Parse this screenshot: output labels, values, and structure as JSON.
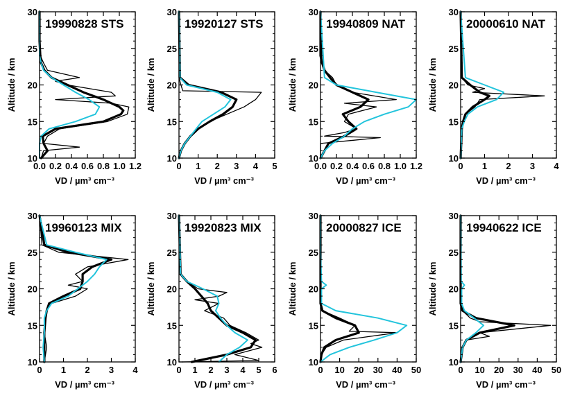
{
  "figure": {
    "panels": [
      {
        "title": "19990828 STS",
        "xticks": [
          "0.0",
          "0.2",
          "0.4",
          "0.6",
          "0.8",
          "1.0",
          "1.2"
        ],
        "xmax": 1.2
      },
      {
        "title": "19920127 STS",
        "xticks": [
          "0",
          "1",
          "2",
          "3",
          "4",
          "5"
        ],
        "xmax": 5
      },
      {
        "title": "19940809 NAT",
        "xticks": [
          "0.0",
          "0.2",
          "0.4",
          "0.6",
          "0.8",
          "1.0",
          "1.2"
        ],
        "xmax": 1.2
      },
      {
        "title": "20000610 NAT",
        "xticks": [
          "0",
          "1",
          "2",
          "3",
          "4"
        ],
        "xmax": 4
      },
      {
        "title": "19960123 MIX",
        "xticks": [
          "0",
          "1",
          "2",
          "3",
          "4"
        ],
        "xmax": 4
      },
      {
        "title": "19920823 MIX",
        "xticks": [
          "0",
          "1",
          "2",
          "3",
          "4",
          "5",
          "6"
        ],
        "xmax": 6
      },
      {
        "title": "20000827 ICE",
        "xticks": [
          "0",
          "10",
          "20",
          "30",
          "40",
          "50"
        ],
        "xmax": 50
      },
      {
        "title": "19940622 ICE",
        "xticks": [
          "0",
          "10",
          "20",
          "30",
          "40",
          "50"
        ],
        "xmax": 50
      }
    ],
    "ylabel": "Altitude / km",
    "xlabel": "VD / µm³ cm⁻³",
    "yticks": [
      "10",
      "15",
      "20",
      "25",
      "30"
    ],
    "colors": {
      "obs": "#000000",
      "model": "#22c4dc"
    }
  },
  "chart_data": [
    {
      "type": "line",
      "title": "19990828 STS",
      "xlabel": "VD / µm³ cm⁻³",
      "ylabel": "Altitude / km",
      "xlim": [
        0,
        1.2
      ],
      "ylim": [
        10,
        30
      ],
      "series": [
        {
          "style": "thick-black",
          "y": [
            10,
            11,
            12,
            13,
            14,
            15,
            16,
            16.5,
            17,
            18,
            19,
            20,
            21,
            22,
            23,
            24,
            26,
            30
          ],
          "x": [
            0.02,
            0.1,
            0.05,
            0.04,
            0.2,
            0.8,
            1.02,
            1.05,
            1.0,
            0.8,
            0.55,
            0.35,
            0.15,
            0.06,
            0.02,
            0.01,
            0.0,
            0.0
          ]
        },
        {
          "style": "thin-black",
          "y": [
            10,
            11,
            11.5,
            12,
            13,
            14,
            15,
            16,
            17,
            17.5,
            18,
            18.5,
            19,
            20,
            20.5,
            21,
            22,
            23,
            24,
            30
          ],
          "x": [
            0.02,
            0.05,
            0.5,
            0.05,
            0.1,
            0.25,
            0.85,
            1.1,
            1.12,
            0.9,
            0.2,
            0.95,
            0.9,
            0.35,
            0.2,
            0.5,
            0.1,
            0.05,
            0.01,
            0.0
          ]
        },
        {
          "style": "cyan",
          "y": [
            10,
            12,
            13,
            14,
            15,
            16,
            17,
            18,
            19,
            20,
            21,
            22,
            23,
            24,
            30
          ],
          "x": [
            0.0,
            0.0,
            0.02,
            0.12,
            0.45,
            0.7,
            0.75,
            0.62,
            0.45,
            0.3,
            0.15,
            0.05,
            0.02,
            0.0,
            0.0
          ]
        }
      ]
    },
    {
      "type": "line",
      "title": "19920127 STS",
      "xlabel": "VD / µm³ cm⁻³",
      "ylabel": "Altitude / km",
      "xlim": [
        0,
        5
      ],
      "ylim": [
        10,
        30
      ],
      "series": [
        {
          "style": "thick-black",
          "y": [
            10,
            11,
            12,
            13,
            14,
            15,
            16,
            17,
            18,
            19,
            20,
            21,
            30
          ],
          "x": [
            0.0,
            0.1,
            0.3,
            0.6,
            1.0,
            1.6,
            2.3,
            2.8,
            3.0,
            2.2,
            0.5,
            0.05,
            0.0
          ]
        },
        {
          "style": "thin-black",
          "y": [
            10,
            11,
            12,
            13,
            14,
            15,
            16,
            17,
            18,
            19,
            19.2,
            20,
            21,
            30
          ],
          "x": [
            0.0,
            0.1,
            0.3,
            0.6,
            1.0,
            1.6,
            2.5,
            3.4,
            4.0,
            4.3,
            0.2,
            0.1,
            0.0,
            0.0
          ]
        },
        {
          "style": "cyan",
          "y": [
            10,
            11,
            12,
            13,
            14,
            15,
            16,
            17,
            18,
            19,
            20,
            21,
            30
          ],
          "x": [
            0.0,
            0.1,
            0.3,
            0.6,
            0.9,
            1.2,
            1.8,
            2.4,
            2.7,
            2.0,
            0.4,
            0.05,
            0.0
          ]
        }
      ]
    },
    {
      "type": "line",
      "title": "19940809 NAT",
      "xlabel": "VD / µm³ cm⁻³",
      "ylabel": "Altitude / km",
      "xlim": [
        0,
        1.2
      ],
      "ylim": [
        10,
        30
      ],
      "series": [
        {
          "style": "thick-black",
          "y": [
            10,
            11,
            12,
            13,
            14,
            15,
            16,
            17,
            18,
            19,
            20,
            21,
            22,
            23,
            24,
            30
          ],
          "x": [
            0.0,
            0.05,
            0.1,
            0.3,
            0.45,
            0.35,
            0.28,
            0.5,
            0.6,
            0.4,
            0.2,
            0.12,
            0.05,
            0.02,
            0.0,
            0.0
          ]
        },
        {
          "style": "thin-black",
          "y": [
            10,
            12,
            12.8,
            13,
            13.5,
            14,
            15,
            16,
            17,
            17.5,
            18,
            19,
            20,
            21,
            22,
            23,
            30
          ],
          "x": [
            0.0,
            0.0,
            0.75,
            0.05,
            0.3,
            0.45,
            0.3,
            0.35,
            0.7,
            0.3,
            0.95,
            0.4,
            0.2,
            0.15,
            0.05,
            0.02,
            0.0
          ]
        },
        {
          "style": "cyan",
          "y": [
            10,
            11,
            12,
            13,
            14,
            15,
            16,
            17,
            18,
            19,
            20,
            21,
            30
          ],
          "x": [
            0.0,
            0.05,
            0.15,
            0.3,
            0.4,
            0.55,
            0.8,
            1.1,
            1.2,
            0.7,
            0.2,
            0.05,
            0.0
          ]
        }
      ]
    },
    {
      "type": "line",
      "title": "20000610 NAT",
      "xlabel": "VD / µm³ cm⁻³",
      "ylabel": "Altitude / km",
      "xlim": [
        0,
        4
      ],
      "ylim": [
        10,
        30
      ],
      "series": [
        {
          "style": "thick-black",
          "y": [
            10,
            14,
            15,
            16,
            17,
            18,
            18.5,
            19,
            20,
            21,
            30
          ],
          "x": [
            0.0,
            0.05,
            0.1,
            0.2,
            0.5,
            1.0,
            1.2,
            0.8,
            0.4,
            0.05,
            0.0
          ]
        },
        {
          "style": "thin-black",
          "y": [
            10,
            14,
            15,
            16,
            17,
            18,
            18.5,
            19,
            19.5,
            20,
            21,
            30
          ],
          "x": [
            0.0,
            0.05,
            0.1,
            0.2,
            0.6,
            0.8,
            3.5,
            0.5,
            1.0,
            0.3,
            0.05,
            0.0
          ]
        },
        {
          "style": "cyan",
          "y": [
            10,
            14,
            15,
            16,
            17,
            18,
            19,
            20,
            21,
            30
          ],
          "x": [
            0.0,
            0.05,
            0.15,
            0.3,
            0.7,
            1.5,
            1.8,
            1.0,
            0.2,
            0.0
          ]
        }
      ]
    },
    {
      "type": "line",
      "title": "19960123 MIX",
      "xlabel": "VD / µm³ cm⁻³",
      "ylabel": "Altitude / km",
      "xlim": [
        0,
        4
      ],
      "ylim": [
        10,
        30
      ],
      "series": [
        {
          "style": "thick-black",
          "y": [
            10,
            12,
            14,
            16,
            17,
            18,
            19,
            20,
            21,
            22,
            23,
            24,
            25,
            26,
            30
          ],
          "x": [
            0.2,
            0.2,
            0.2,
            0.25,
            0.3,
            0.4,
            1.0,
            1.7,
            1.8,
            1.8,
            2.2,
            3.0,
            1.2,
            0.2,
            0.0
          ]
        },
        {
          "style": "thin-black",
          "y": [
            10,
            12,
            14,
            16,
            17,
            18,
            19,
            20,
            20.5,
            21,
            22,
            23,
            24,
            25,
            26,
            30
          ],
          "x": [
            0.2,
            0.3,
            0.2,
            0.25,
            0.3,
            0.5,
            1.5,
            2.0,
            1.2,
            1.8,
            1.5,
            2.0,
            3.7,
            0.8,
            0.1,
            0.0
          ]
        },
        {
          "style": "cyan",
          "y": [
            10,
            12,
            14,
            16,
            17,
            18,
            19,
            20,
            21,
            22,
            23,
            24,
            25,
            26,
            30
          ],
          "x": [
            0.2,
            0.15,
            0.2,
            0.2,
            0.3,
            0.5,
            1.2,
            1.6,
            2.0,
            2.3,
            2.5,
            2.8,
            1.5,
            0.3,
            0.0
          ]
        }
      ]
    },
    {
      "type": "line",
      "title": "19920823 MIX",
      "xlabel": "VD / µm³ cm⁻³",
      "ylabel": "Altitude / km",
      "xlim": [
        0,
        6
      ],
      "ylim": [
        10,
        30
      ],
      "series": [
        {
          "style": "thick-black",
          "y": [
            10,
            11,
            12,
            13,
            14,
            15,
            16,
            17,
            18,
            19,
            20,
            21,
            22,
            30
          ],
          "x": [
            0.8,
            3.0,
            4.5,
            4.8,
            4.0,
            3.0,
            2.5,
            2.0,
            1.8,
            1.4,
            1.0,
            0.5,
            0.1,
            0.0
          ]
        },
        {
          "style": "thin-black",
          "y": [
            10,
            10.2,
            11,
            12,
            12.5,
            13,
            14,
            15,
            16,
            17,
            18,
            18.5,
            19,
            19.5,
            20,
            21,
            22,
            30
          ],
          "x": [
            0.2,
            5.0,
            3.5,
            5.2,
            4.5,
            5.0,
            4.2,
            3.2,
            2.8,
            1.6,
            2.5,
            1.0,
            2.5,
            3.0,
            1.2,
            0.5,
            0.1,
            0.0
          ]
        },
        {
          "style": "cyan",
          "y": [
            10,
            11,
            12,
            13,
            14,
            15,
            16,
            17,
            18,
            19,
            20,
            21,
            22,
            30
          ],
          "x": [
            2.5,
            3.0,
            3.8,
            4.3,
            3.5,
            3.0,
            2.6,
            2.3,
            2.5,
            2.4,
            1.5,
            0.5,
            0.1,
            0.0
          ]
        }
      ]
    },
    {
      "type": "line",
      "title": "20000827 ICE",
      "xlabel": "VD / µm³ cm⁻³",
      "ylabel": "Altitude / km",
      "xlim": [
        0,
        50
      ],
      "ylim": [
        10,
        30
      ],
      "series": [
        {
          "style": "thick-black",
          "y": [
            10,
            11,
            12,
            13,
            14,
            15,
            16,
            17,
            18,
            30
          ],
          "x": [
            0.0,
            0.5,
            2.0,
            8.0,
            20.0,
            18.0,
            8.0,
            1.0,
            0.0,
            0.0
          ]
        },
        {
          "style": "thin-black",
          "y": [
            10,
            11,
            12,
            13,
            14,
            14.2,
            15,
            16,
            17,
            18,
            30
          ],
          "x": [
            0.0,
            0.5,
            3.0,
            12.0,
            40.0,
            15.0,
            18.0,
            10.0,
            1.0,
            0.0,
            0.0
          ]
        },
        {
          "style": "cyan",
          "y": [
            10,
            11,
            12,
            13,
            14,
            15,
            16,
            17,
            18,
            20,
            20.5,
            21,
            25,
            30
          ],
          "x": [
            0.0,
            5.0,
            15.0,
            28.0,
            40.0,
            45.0,
            30.0,
            8.0,
            0.5,
            0.5,
            3.0,
            0.5,
            0.0,
            0.0
          ]
        }
      ]
    },
    {
      "type": "line",
      "title": "19940622 ICE",
      "xlabel": "VD / µm³ cm⁻³",
      "ylabel": "Altitude / km",
      "xlim": [
        0,
        50
      ],
      "ylim": [
        10,
        30
      ],
      "series": [
        {
          "style": "thick-black",
          "y": [
            10,
            11,
            12,
            13,
            14,
            15,
            16,
            17,
            18,
            30
          ],
          "x": [
            0.0,
            0.5,
            1.0,
            3.0,
            10.0,
            28.0,
            8.0,
            1.0,
            0.0,
            0.0
          ]
        },
        {
          "style": "thin-black",
          "y": [
            10,
            11,
            12,
            13,
            13.5,
            14,
            15,
            15.5,
            16,
            17,
            18,
            30
          ],
          "x": [
            0.0,
            0.5,
            1.0,
            3.0,
            15.0,
            10.0,
            47.0,
            10.0,
            5.0,
            1.0,
            0.0,
            0.0
          ]
        },
        {
          "style": "cyan",
          "y": [
            10,
            11,
            12,
            13,
            14,
            15,
            16,
            17,
            18,
            20,
            20.5,
            21,
            30
          ],
          "x": [
            0.0,
            0.5,
            1.0,
            3.0,
            8.0,
            12.0,
            7.0,
            2.0,
            0.5,
            0.5,
            2.0,
            0.3,
            0.0
          ]
        }
      ]
    }
  ]
}
